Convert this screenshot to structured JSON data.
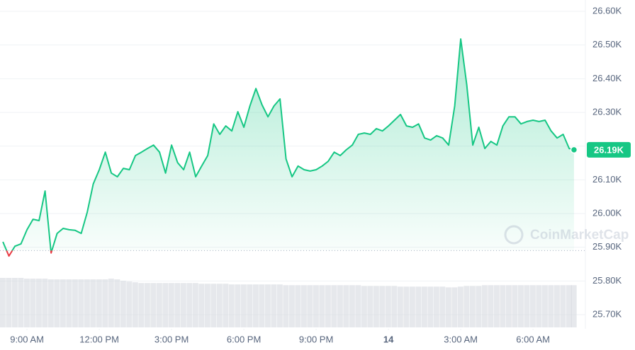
{
  "chart_data": {
    "type": "line",
    "watermark": "CoinMarketCap",
    "x": [
      8.0,
      8.25,
      8.5,
      8.75,
      9.0,
      9.25,
      9.5,
      9.75,
      10.0,
      10.25,
      10.5,
      10.75,
      11.0,
      11.25,
      11.5,
      11.75,
      12.0,
      12.25,
      12.5,
      12.75,
      13.0,
      13.25,
      13.5,
      13.75,
      14.0,
      14.25,
      14.5,
      14.75,
      15.0,
      15.25,
      15.5,
      15.75,
      16.0,
      16.25,
      16.5,
      16.75,
      17.0,
      17.25,
      17.5,
      17.75,
      18.0,
      18.25,
      18.5,
      18.75,
      19.0,
      19.25,
      19.5,
      19.75,
      20.0,
      20.25,
      20.5,
      20.75,
      21.0,
      21.25,
      21.5,
      21.75,
      22.0,
      22.25,
      22.5,
      22.75,
      23.0,
      23.25,
      23.5,
      23.75,
      24.0,
      24.25,
      24.5,
      24.75,
      25.0,
      25.25,
      25.5,
      25.75,
      26.0,
      26.25,
      26.5,
      26.75,
      27.0,
      27.25,
      27.5,
      27.75,
      28.0,
      28.25,
      28.5,
      28.75,
      29.0,
      29.25,
      29.5,
      29.75,
      30.0,
      30.25,
      30.5,
      30.75,
      31.0,
      31.25,
      31.5,
      31.7
    ],
    "series": [
      {
        "name": "Price",
        "color": "#16c784",
        "below_color": "#ea3943",
        "values": [
          25916,
          25874,
          25903,
          25910,
          25952,
          25983,
          25979,
          26067,
          25883,
          25941,
          25956,
          25952,
          25950,
          25941,
          26004,
          26088,
          26130,
          26182,
          26120,
          26109,
          26134,
          26130,
          26172,
          26182,
          26193,
          26203,
          26182,
          26120,
          26203,
          26151,
          26130,
          26182,
          26109,
          26141,
          26172,
          26266,
          26235,
          26260,
          26245,
          26302,
          26256,
          26319,
          26371,
          26323,
          26287,
          26319,
          26340,
          26162,
          26109,
          26141,
          26130,
          26126,
          26130,
          26141,
          26155,
          26182,
          26172,
          26189,
          26203,
          26235,
          26239,
          26235,
          26252,
          26245,
          26260,
          26277,
          26294,
          26260,
          26256,
          26266,
          26224,
          26218,
          26231,
          26224,
          26203,
          26319,
          26518,
          26382,
          26203,
          26256,
          26193,
          26214,
          26203,
          26260,
          26287,
          26287,
          26266,
          26273,
          26277,
          26273,
          26277,
          26245,
          26224,
          26235,
          26193,
          26189
        ],
        "last_label": "26.19K"
      },
      {
        "name": "Volume",
        "color": "#d5d9e0",
        "values": [
          68,
          68,
          68,
          68,
          67,
          67,
          67,
          67,
          66,
          66,
          66,
          66,
          66,
          66,
          66,
          66,
          66,
          66,
          67,
          66,
          64,
          63,
          62,
          61,
          61,
          61,
          61,
          61,
          61,
          61,
          61,
          61,
          61,
          60,
          60,
          60,
          60,
          60,
          59,
          59,
          59,
          59,
          59,
          59,
          59,
          59,
          59,
          58,
          58,
          58,
          58,
          58,
          58,
          58,
          58,
          58,
          58,
          58,
          58,
          58,
          57,
          57,
          57,
          57,
          57,
          57,
          56,
          56,
          56,
          56,
          56,
          56,
          56,
          56,
          55,
          55,
          56,
          57,
          57,
          57,
          58,
          58,
          58,
          58,
          58,
          58,
          58,
          58,
          58,
          58,
          58,
          58,
          58,
          58,
          58,
          58
        ]
      }
    ],
    "reference_line": 25890,
    "xlim": [
      7.88,
      31.82
    ],
    "xticks": [
      {
        "value": 9,
        "label": "9:00 AM"
      },
      {
        "value": 12,
        "label": "12:00 PM"
      },
      {
        "value": 15,
        "label": "3:00 PM"
      },
      {
        "value": 18,
        "label": "6:00 PM"
      },
      {
        "value": 21,
        "label": "9:00 PM"
      },
      {
        "value": 24,
        "label": "14"
      },
      {
        "value": 27,
        "label": "3:00 AM"
      },
      {
        "value": 30,
        "label": "6:00 AM"
      }
    ],
    "ylim": [
      25640,
      26630
    ],
    "yticks": [
      {
        "value": 25700,
        "label": "25.70K"
      },
      {
        "value": 25800,
        "label": "25.80K"
      },
      {
        "value": 25900,
        "label": "25.90K"
      },
      {
        "value": 26000,
        "label": "26.00K"
      },
      {
        "value": 26100,
        "label": "26.10K"
      },
      {
        "value": 26200,
        "label": "26.20K"
      },
      {
        "value": 26300,
        "label": "26.30K"
      },
      {
        "value": 26400,
        "label": "26.40K"
      },
      {
        "value": 26500,
        "label": "26.50K"
      },
      {
        "value": 26600,
        "label": "26.60K"
      }
    ],
    "grid": true
  }
}
